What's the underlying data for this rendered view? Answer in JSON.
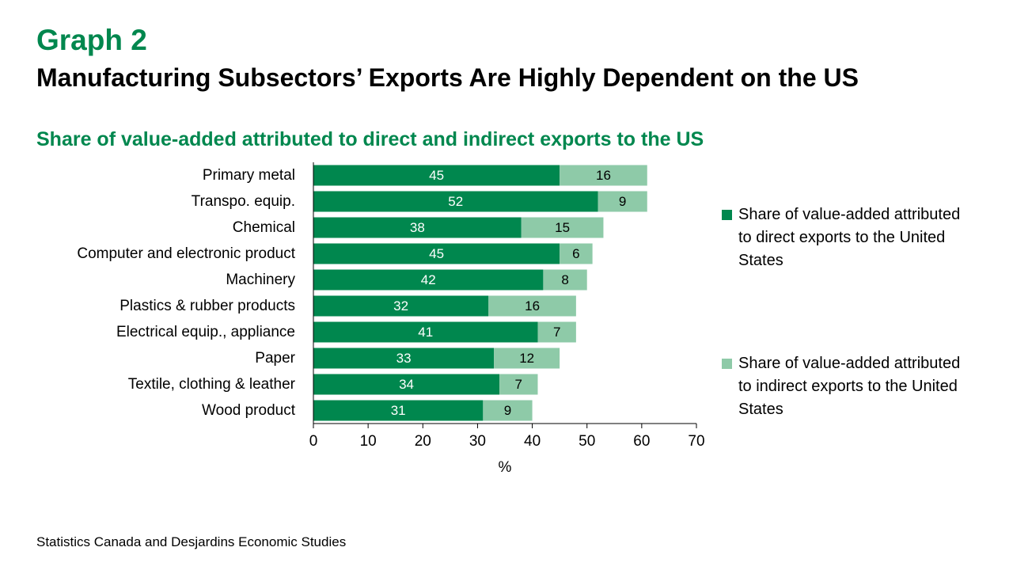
{
  "header": {
    "graph_label": "Graph 2",
    "title": "Manufacturing Subsectors’ Exports Are Highly Dependent on the US"
  },
  "source": "Statistics Canada and Desjardins Economic Studies",
  "colors": {
    "direct": "#00874e",
    "indirect": "#8ecaa8",
    "accent": "#00874e"
  },
  "chart_data": {
    "type": "bar",
    "orientation": "horizontal",
    "stacked": true,
    "title": "Share of value-added attributed to direct and indirect exports to the US",
    "xlabel": "%",
    "ylabel": "",
    "xlim": [
      0,
      70
    ],
    "xticks": [
      0,
      10,
      20,
      30,
      40,
      50,
      60,
      70
    ],
    "grid": false,
    "legend_position": "right",
    "categories": [
      "Primary metal",
      "Transpo. equip.",
      "Chemical",
      "Computer and electronic product",
      "Machinery",
      "Plastics & rubber products",
      "Electrical equip., appliance",
      "Paper",
      "Textile, clothing & leather",
      "Wood product"
    ],
    "series": [
      {
        "name": "Share of value-added attributed to direct exports to the United States",
        "values": [
          45,
          52,
          38,
          45,
          42,
          32,
          41,
          33,
          34,
          31
        ]
      },
      {
        "name": "Share of value-added attributed to indirect exports to the United States",
        "values": [
          16,
          9,
          15,
          6,
          8,
          16,
          7,
          12,
          7,
          9
        ]
      }
    ]
  }
}
